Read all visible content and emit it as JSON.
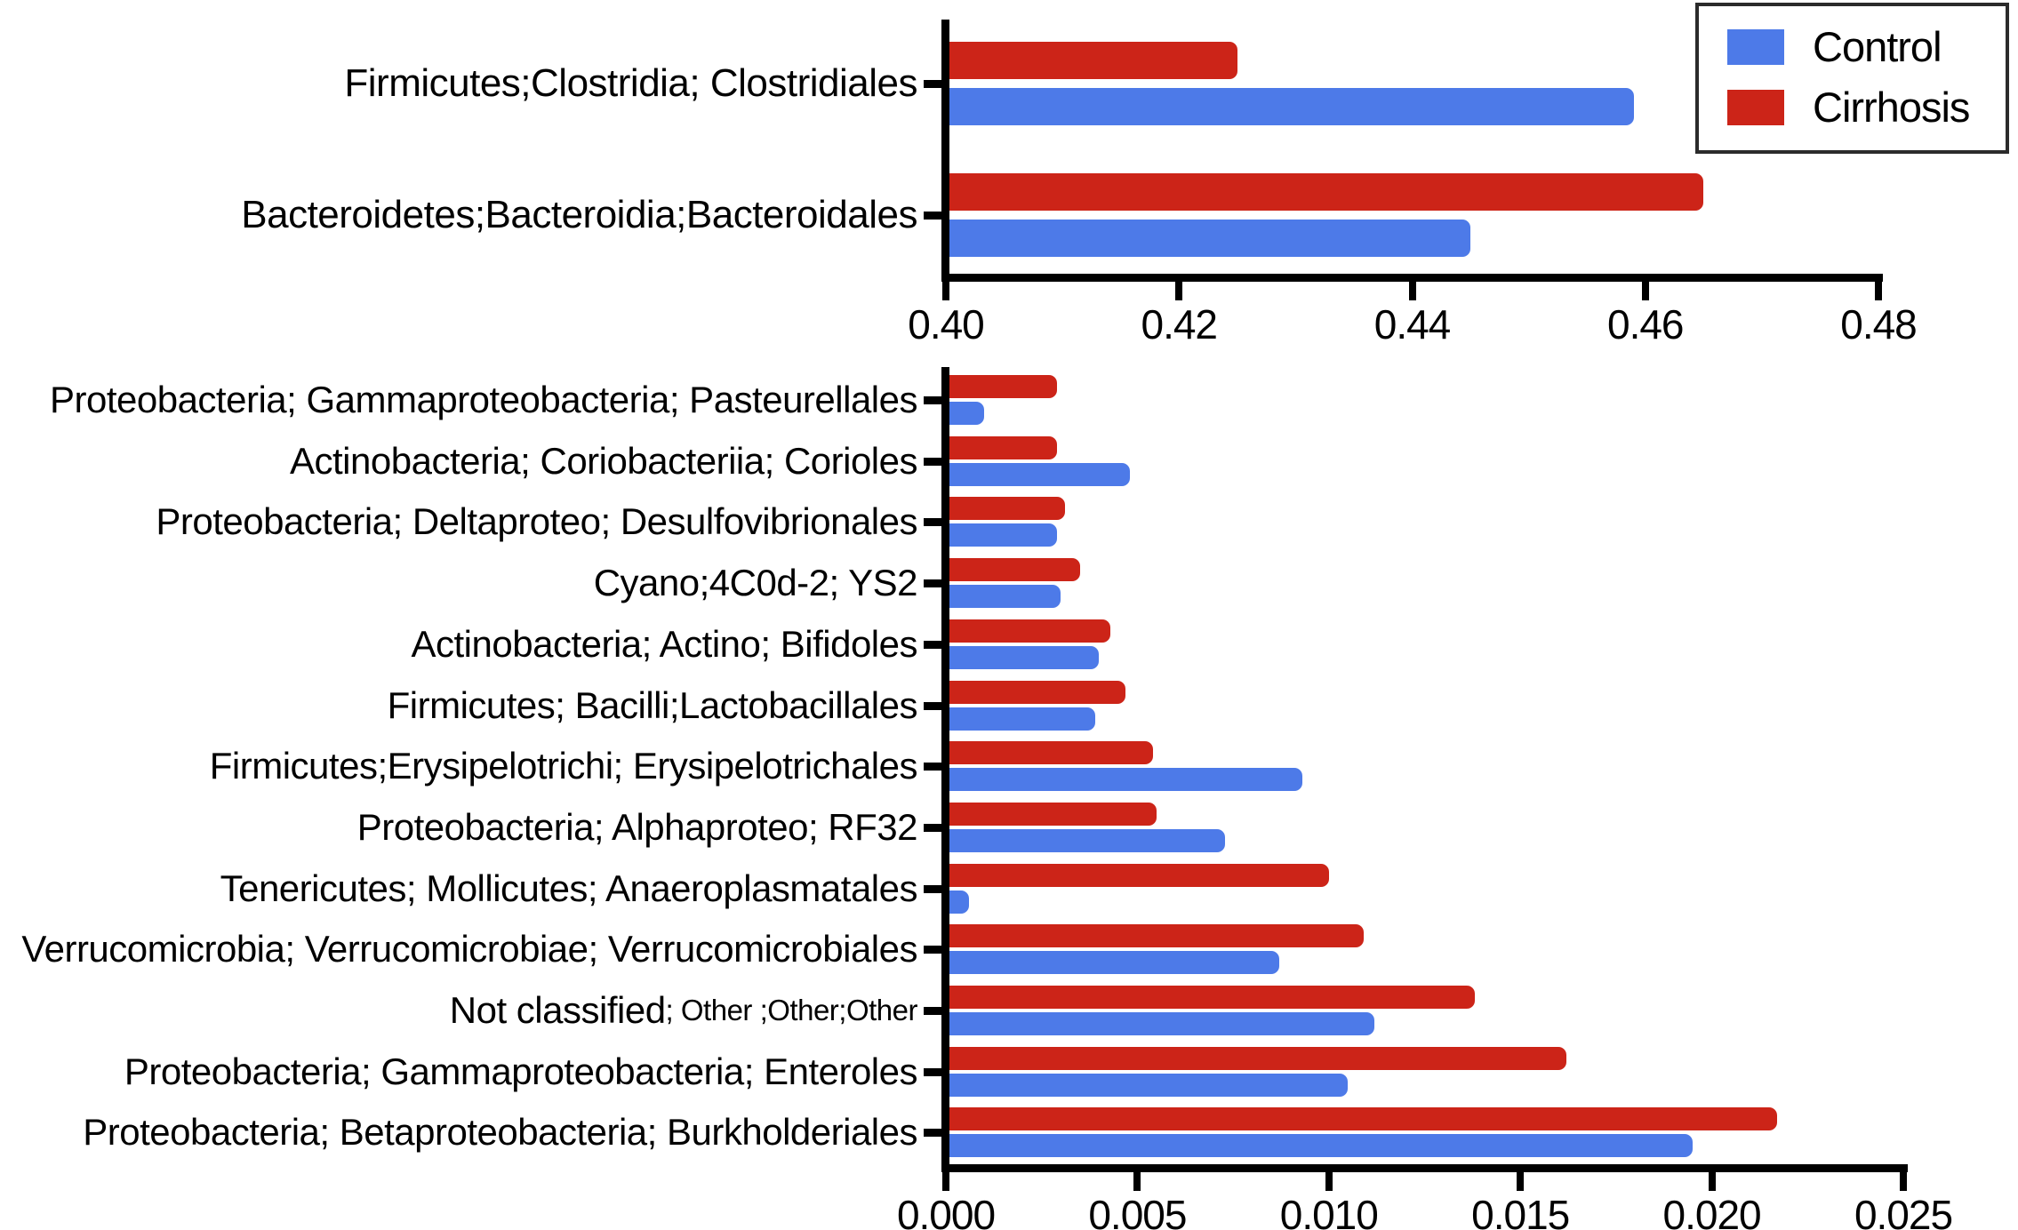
{
  "legend": {
    "position": "top-right",
    "items": [
      {
        "label": "Control",
        "color": "#4d7ae8"
      },
      {
        "label": "Cirrhosis",
        "color": "#cc2418"
      }
    ]
  },
  "chart_data": [
    {
      "type": "bar",
      "orientation": "horizontal",
      "title": "",
      "xlabel": "",
      "ylabel": "",
      "grid": false,
      "legend_position": "top-right",
      "xlim": [
        0.4,
        0.48
      ],
      "xticks": [
        "0.40",
        "0.42",
        "0.44",
        "0.46",
        "0.48"
      ],
      "categories": [
        {
          "label": "Firmicutes;Clostridia; Clostridiales",
          "sublabel": ""
        },
        {
          "label": "Bacteroidetes;Bacteroidia;Bacteroidales",
          "sublabel": ""
        }
      ],
      "series": [
        {
          "name": "Control",
          "color": "#4d7ae8",
          "values": [
            0.459,
            0.445
          ]
        },
        {
          "name": "Cirrhosis",
          "color": "#cc2418",
          "values": [
            0.425,
            0.465
          ]
        }
      ]
    },
    {
      "type": "bar",
      "orientation": "horizontal",
      "title": "",
      "xlabel": "",
      "ylabel": "",
      "grid": false,
      "xlim": [
        0.0,
        0.025
      ],
      "xticks": [
        "0.000",
        "0.005",
        "0.010",
        "0.015",
        "0.020",
        "0.025"
      ],
      "categories": [
        {
          "label": "Proteobacteria; Gammaproteobacteria; Pasteurellales",
          "sublabel": ""
        },
        {
          "label": "Actinobacteria; Coriobacteriia; Corioles",
          "sublabel": ""
        },
        {
          "label": "Proteobacteria; Deltaproteo; Desulfovibrionales",
          "sublabel": ""
        },
        {
          "label": "Cyano;4C0d-2; YS2",
          "sublabel": ""
        },
        {
          "label": "Actinobacteria; Actino; Bifidoles",
          "sublabel": ""
        },
        {
          "label": "Firmicutes; Bacilli;Lactobacillales",
          "sublabel": ""
        },
        {
          "label": "Firmicutes;Erysipelotrichi; Erysipelotrichales",
          "sublabel": ""
        },
        {
          "label": "Proteobacteria; Alphaproteo; RF32",
          "sublabel": ""
        },
        {
          "label": "Tenericutes; Mollicutes; Anaeroplasmatales",
          "sublabel": ""
        },
        {
          "label": "Verrucomicrobia; Verrucomicrobiae; Verrucomicrobiales",
          "sublabel": ""
        },
        {
          "label": "Not classified",
          "sublabel": " ; Other ;Other;Other"
        },
        {
          "label": "Proteobacteria; Gammaproteobacteria; Enteroles",
          "sublabel": ""
        },
        {
          "label": "Proteobacteria; Betaproteobacteria; Burkholderiales",
          "sublabel": ""
        }
      ],
      "series": [
        {
          "name": "Control",
          "color": "#4d7ae8",
          "values": [
            0.001,
            0.0048,
            0.0029,
            0.003,
            0.004,
            0.0039,
            0.0093,
            0.0073,
            0.0006,
            0.0087,
            0.0112,
            0.0105,
            0.0195
          ]
        },
        {
          "name": "Cirrhosis",
          "color": "#cc2418",
          "values": [
            0.0029,
            0.0029,
            0.0031,
            0.0035,
            0.0043,
            0.0047,
            0.0054,
            0.0055,
            0.01,
            0.0109,
            0.0138,
            0.0162,
            0.0217
          ]
        }
      ]
    }
  ]
}
